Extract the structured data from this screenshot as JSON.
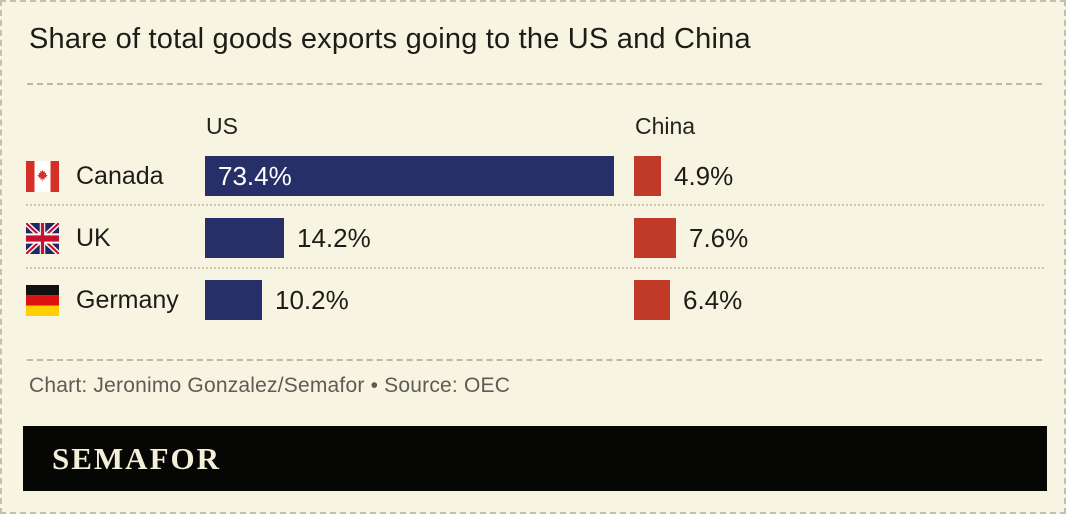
{
  "chart_data": {
    "type": "bar",
    "orientation": "horizontal",
    "title": "Share of total goods exports going to the US and China",
    "categories": [
      "Canada",
      "UK",
      "Germany"
    ],
    "series": [
      {
        "name": "US",
        "color": "#262f68",
        "values": [
          73.4,
          14.2,
          10.2
        ],
        "labels": [
          "73.4%",
          "14.2%",
          "10.2%"
        ]
      },
      {
        "name": "China",
        "color": "#c13a28",
        "values": [
          4.9,
          7.6,
          6.4
        ],
        "labels": [
          "4.9%",
          "7.6%",
          "6.4%"
        ]
      }
    ],
    "value_unit": "%",
    "axis_max": 75,
    "grid": false,
    "legend_position": "column-headers"
  },
  "footer": {
    "credit": "Chart: Jeronimo Gonzalez/Semafor • Source: OEC",
    "logo_text": "SEMAFOR"
  },
  "colors": {
    "background": "#f8f4e2",
    "us_bar": "#262f68",
    "china_bar": "#c13a28",
    "bar_label_inside": "#ffffff",
    "text": "#1d1d17",
    "credit_text": "#5d5c54",
    "logo_bar_background": "#060604",
    "logo_text": "#f4efd8"
  }
}
